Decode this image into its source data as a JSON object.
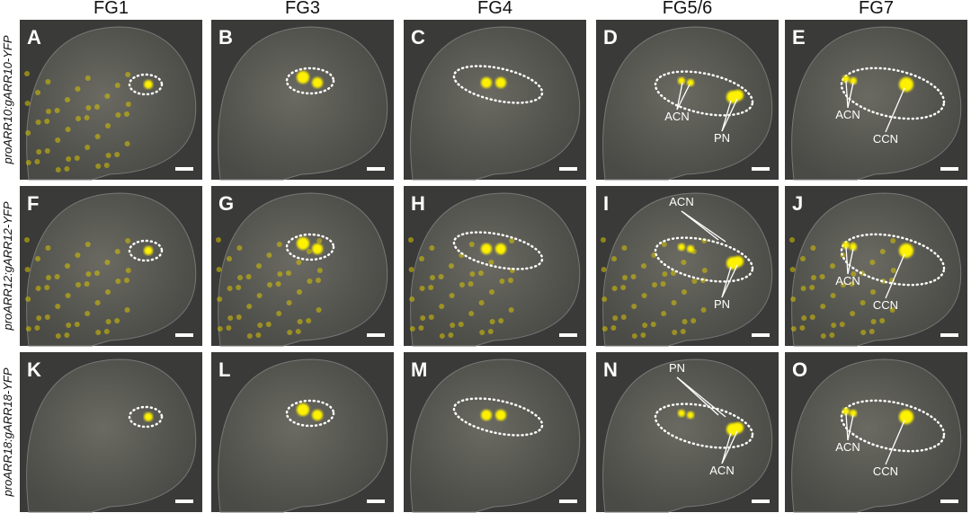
{
  "columns": [
    "FG1",
    "FG3",
    "FG4",
    "FG5/6",
    "FG7"
  ],
  "rows": [
    {
      "label": "proARR10:gARR10-YFP",
      "panels": [
        {
          "letter": "A"
        },
        {
          "letter": "B"
        },
        {
          "letter": "C"
        },
        {
          "letter": "D",
          "annotations": [
            "ACN",
            "PN"
          ]
        },
        {
          "letter": "E",
          "annotations": [
            "ACN",
            "CCN"
          ]
        }
      ]
    },
    {
      "label": "proARR12:gARR12-YFP",
      "panels": [
        {
          "letter": "F"
        },
        {
          "letter": "G"
        },
        {
          "letter": "H"
        },
        {
          "letter": "I",
          "annotations": [
            "ACN",
            "PN"
          ]
        },
        {
          "letter": "J",
          "annotations": [
            "ACN",
            "CCN"
          ]
        }
      ]
    },
    {
      "label": "proARR18:gARR18-YFP",
      "panels": [
        {
          "letter": "K"
        },
        {
          "letter": "L"
        },
        {
          "letter": "M"
        },
        {
          "letter": "N",
          "annotations": [
            "PN",
            "ACN"
          ]
        },
        {
          "letter": "O",
          "annotations": [
            "ACN",
            "CCN"
          ]
        }
      ]
    }
  ]
}
